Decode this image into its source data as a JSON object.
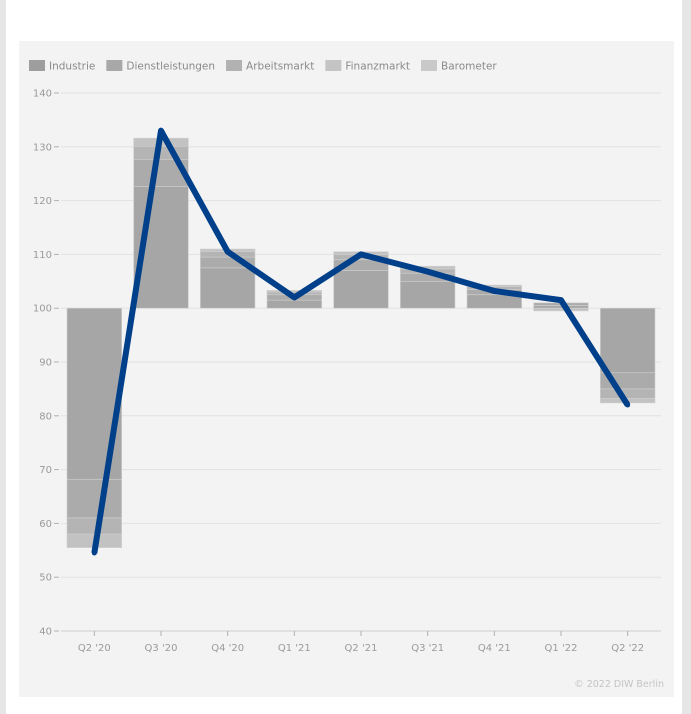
{
  "chart_data": {
    "type": "bar",
    "categories": [
      "Q2 '20",
      "Q3 '20",
      "Q4 '20",
      "Q1 '21",
      "Q2 '21",
      "Q3 '21",
      "Q4 '21",
      "Q1 '22",
      "Q2 '22"
    ],
    "baseline": 100,
    "ylim": [
      40,
      140
    ],
    "yticks": [
      40,
      50,
      60,
      70,
      80,
      90,
      100,
      110,
      120,
      130,
      140
    ],
    "grid": true,
    "legend_position": "top-left",
    "series": [
      {
        "name": "Industrie",
        "color": "#a6a6a6",
        "values": [
          -31.8,
          22.6,
          7.5,
          1.5,
          7.0,
          5.0,
          2.5,
          0.5,
          -12.0
        ]
      },
      {
        "name": "Dienstleistungen",
        "color": "#ababab",
        "values": [
          -7.2,
          5.0,
          2.0,
          1.0,
          2.0,
          1.5,
          1.0,
          0.5,
          -3.0
        ]
      },
      {
        "name": "Arbeitsmarkt",
        "color": "#b4b4b4",
        "values": [
          -3.0,
          2.5,
          1.0,
          0.5,
          1.0,
          0.8,
          0.5,
          0.0,
          -1.8
        ]
      },
      {
        "name": "Finanzmarkt",
        "color": "#c2c2c2",
        "values": [
          -2.5,
          1.5,
          0.5,
          0.3,
          0.5,
          0.5,
          0.3,
          -0.5,
          -0.8
        ]
      },
      {
        "name": "Barometer",
        "color": "#003f8a",
        "type": "line",
        "values": [
          54.5,
          133.0,
          110.5,
          102.0,
          110.0,
          106.8,
          103.2,
          101.5,
          82.0
        ]
      }
    ]
  },
  "credit": "© 2022 DIW Berlin"
}
